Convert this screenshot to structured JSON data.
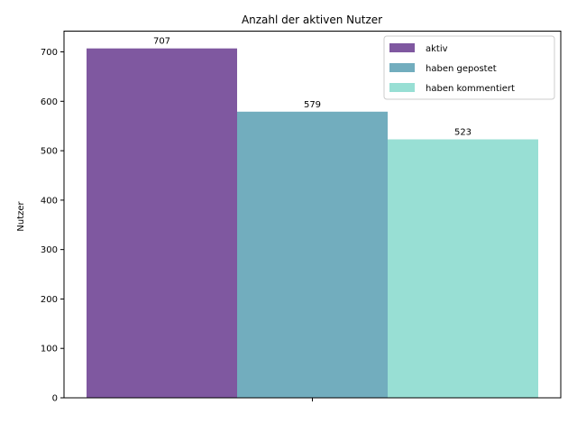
{
  "chart_data": {
    "type": "bar",
    "title": "Anzahl der aktiven Nutzer",
    "xlabel": "",
    "ylabel": "Nutzer",
    "ylim": [
      0,
      742
    ],
    "yticks": [
      0,
      100,
      200,
      300,
      400,
      500,
      600,
      700
    ],
    "grid": false,
    "legend_position": "top-right",
    "categories": [
      ""
    ],
    "series": [
      {
        "name": "aktiv",
        "values": [
          707
        ],
        "color": "#7f58a0"
      },
      {
        "name": "haben gepostet",
        "values": [
          579
        ],
        "color": "#72adbe"
      },
      {
        "name": "haben kommentiert",
        "values": [
          523
        ],
        "color": "#98dfd4"
      }
    ],
    "data_labels": [
      "707",
      "579",
      "523"
    ]
  }
}
